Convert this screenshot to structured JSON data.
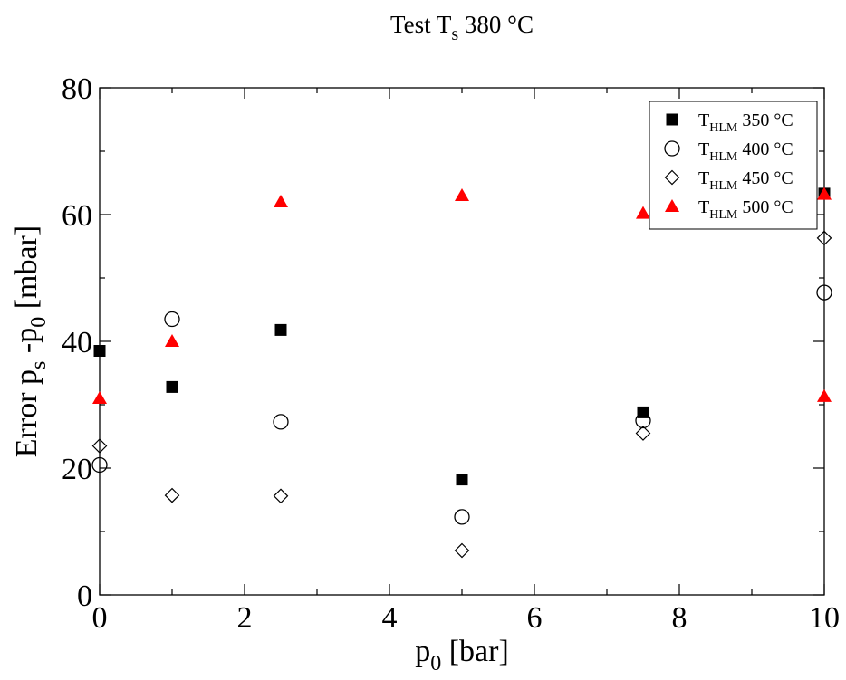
{
  "chart_data": {
    "type": "scatter",
    "title": {
      "main": "Test T",
      "sub": "s",
      "rest": " 380 °C"
    },
    "xlabel": {
      "main": "p",
      "sub": "0",
      "rest": " [bar]"
    },
    "ylabel": {
      "a": "Error p",
      "a_sub": "s",
      "b": " -p",
      "b_sub": "0",
      "rest": " [mbar]"
    },
    "xlim": [
      0,
      10
    ],
    "ylim": [
      0,
      80
    ],
    "xticks": [
      0,
      2,
      4,
      6,
      8,
      10
    ],
    "yticks": [
      0,
      20,
      40,
      60,
      80
    ],
    "grid": false,
    "legend_position": "top-right",
    "series": [
      {
        "name": {
          "main": "T",
          "sub": "HLM",
          "rest": " 350 °C"
        },
        "marker": "square-filled",
        "color": "#000000",
        "x": [
          0,
          1,
          2.5,
          5,
          7.5,
          10
        ],
        "y": [
          38.5,
          32.8,
          41.8,
          18.2,
          28.8,
          63.3
        ]
      },
      {
        "name": {
          "main": "T",
          "sub": "HLM",
          "rest": " 400 °C"
        },
        "marker": "circle-open",
        "color": "#000000",
        "x": [
          0,
          1,
          2.5,
          5,
          7.5,
          10
        ],
        "y": [
          20.5,
          43.5,
          27.3,
          12.3,
          27.5,
          47.7
        ]
      },
      {
        "name": {
          "main": "T",
          "sub": "HLM",
          "rest": " 450 °C"
        },
        "marker": "diamond-open",
        "color": "#000000",
        "x": [
          0,
          1,
          2.5,
          5,
          7.5,
          10
        ],
        "y": [
          23.5,
          15.7,
          15.6,
          7.0,
          25.5,
          56.3
        ]
      },
      {
        "name": {
          "main": "T",
          "sub": "HLM",
          "rest": " 500 °C"
        },
        "marker": "triangle-filled",
        "color": "#ff0000",
        "x": [
          0,
          1,
          2.5,
          5,
          7.5,
          10,
          10
        ],
        "y": [
          31.0,
          40.0,
          62.0,
          63.0,
          60.2,
          63.2,
          31.3
        ]
      }
    ]
  }
}
